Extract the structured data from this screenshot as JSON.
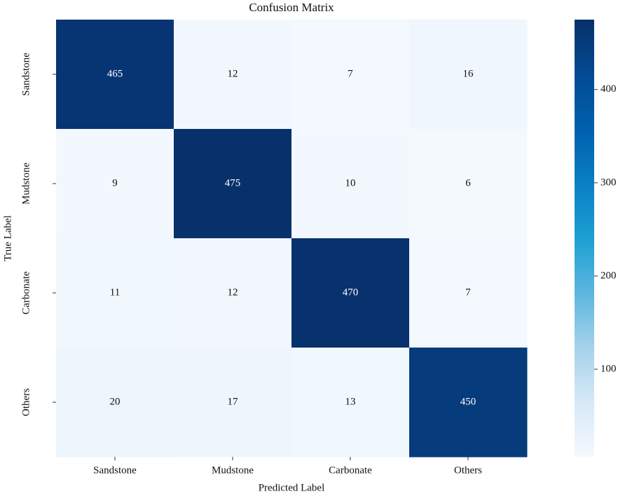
{
  "chart_data": {
    "type": "heatmap",
    "title": "Confusion Matrix",
    "x_label": "Predicted Label",
    "y_label": "True Label",
    "x_categories": [
      "Sandstone",
      "Mudstone",
      "Carbonate",
      "Others"
    ],
    "y_categories": [
      "Sandstone",
      "Mudstone",
      "Carbonate",
      "Others"
    ],
    "values": [
      [
        465,
        12,
        7,
        16
      ],
      [
        9,
        475,
        10,
        6
      ],
      [
        11,
        12,
        470,
        7
      ],
      [
        20,
        17,
        13,
        450
      ]
    ],
    "zlim": [
      6,
      475
    ],
    "zticks": [
      100,
      200,
      300,
      400
    ],
    "colormap": "Blues"
  }
}
